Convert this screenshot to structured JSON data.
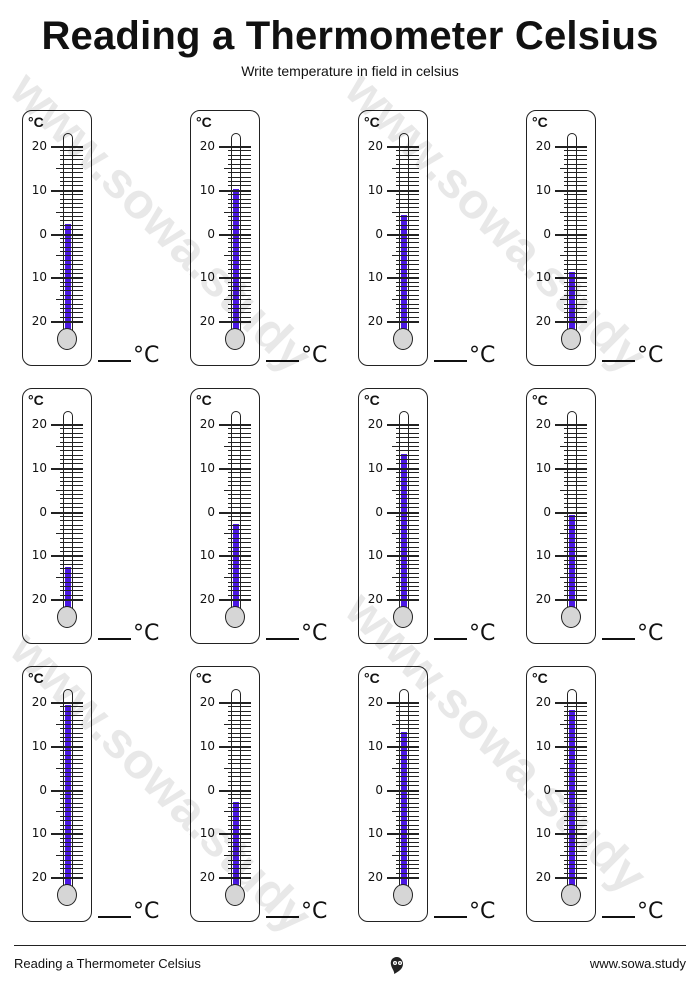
{
  "title": "Reading a Thermometer Celsius",
  "subtitle": "Write temperature in field in celsius",
  "unit_label": "°C",
  "answer_unit": "°C",
  "scale_labels": [
    "20",
    "10",
    "0",
    "10",
    "20"
  ],
  "scale_range": [
    -20,
    20
  ],
  "fill_color": "#4b17e5",
  "thermometers": [
    {
      "reading": 2
    },
    {
      "reading": 10
    },
    {
      "reading": 4
    },
    {
      "reading": -9
    },
    {
      "reading": -13
    },
    {
      "reading": -3
    },
    {
      "reading": 13
    },
    {
      "reading": -1
    },
    {
      "reading": 19
    },
    {
      "reading": -3
    },
    {
      "reading": 13
    },
    {
      "reading": 18
    }
  ],
  "watermark": "www.sowa.study",
  "footer": {
    "left": "Reading a Thermometer Celsius",
    "right": "www.sowa.study",
    "logo_icon": "owl-logo-icon"
  }
}
